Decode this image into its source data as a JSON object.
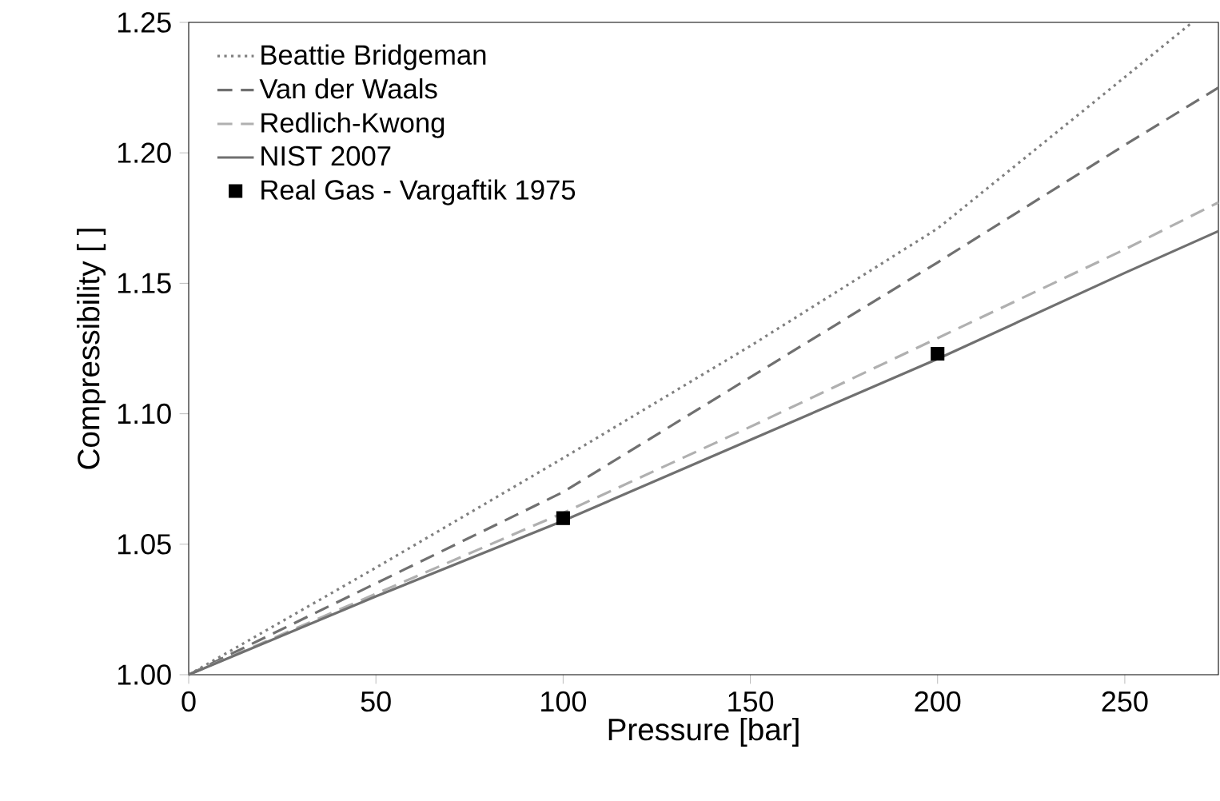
{
  "chart_data": {
    "type": "line",
    "xlabel": "Pressure [bar]",
    "ylabel": "Compressibility [ ]",
    "xlim": [
      0,
      275
    ],
    "ylim": [
      1.0,
      1.25
    ],
    "xticks": [
      0,
      50,
      100,
      150,
      200,
      250
    ],
    "yticks": [
      {
        "value": 1.0,
        "label": "1.00"
      },
      {
        "value": 1.05,
        "label": "1.05"
      },
      {
        "value": 1.1,
        "label": "1.10"
      },
      {
        "value": 1.15,
        "label": "1.15"
      },
      {
        "value": 1.2,
        "label": "1.20"
      },
      {
        "value": 1.25,
        "label": "1.25"
      }
    ],
    "legend": "top left",
    "series": [
      {
        "name": "Beattie Bridgeman",
        "color": "#808080",
        "line_style": "dotted",
        "x": [
          0,
          50,
          100,
          150,
          200,
          250,
          268
        ],
        "values": [
          1.0,
          1.041,
          1.083,
          1.126,
          1.171,
          1.229,
          1.25
        ]
      },
      {
        "name": "Van der Waals",
        "color": "#707070",
        "line_style": "dashed",
        "x": [
          0,
          50,
          100,
          150,
          200,
          250,
          275
        ],
        "values": [
          1.0,
          1.035,
          1.07,
          1.114,
          1.158,
          1.203,
          1.225
        ]
      },
      {
        "name": "Redlich-Kwong",
        "color": "#b0b0b0",
        "line_style": "dashed",
        "x": [
          0,
          50,
          100,
          150,
          200,
          250,
          275
        ],
        "values": [
          1.0,
          1.031,
          1.062,
          1.095,
          1.129,
          1.163,
          1.181
        ]
      },
      {
        "name": "NIST 2007",
        "color": "#707070",
        "line_style": "solid",
        "x": [
          0,
          50,
          100,
          150,
          200,
          250,
          275
        ],
        "values": [
          1.0,
          1.03,
          1.059,
          1.09,
          1.121,
          1.154,
          1.17
        ]
      },
      {
        "name": "Real Gas - Vargaftik 1975",
        "type": "scatter",
        "marker": "square",
        "color": "#000000",
        "x": [
          100,
          200
        ],
        "values": [
          1.06,
          1.123
        ]
      }
    ]
  }
}
